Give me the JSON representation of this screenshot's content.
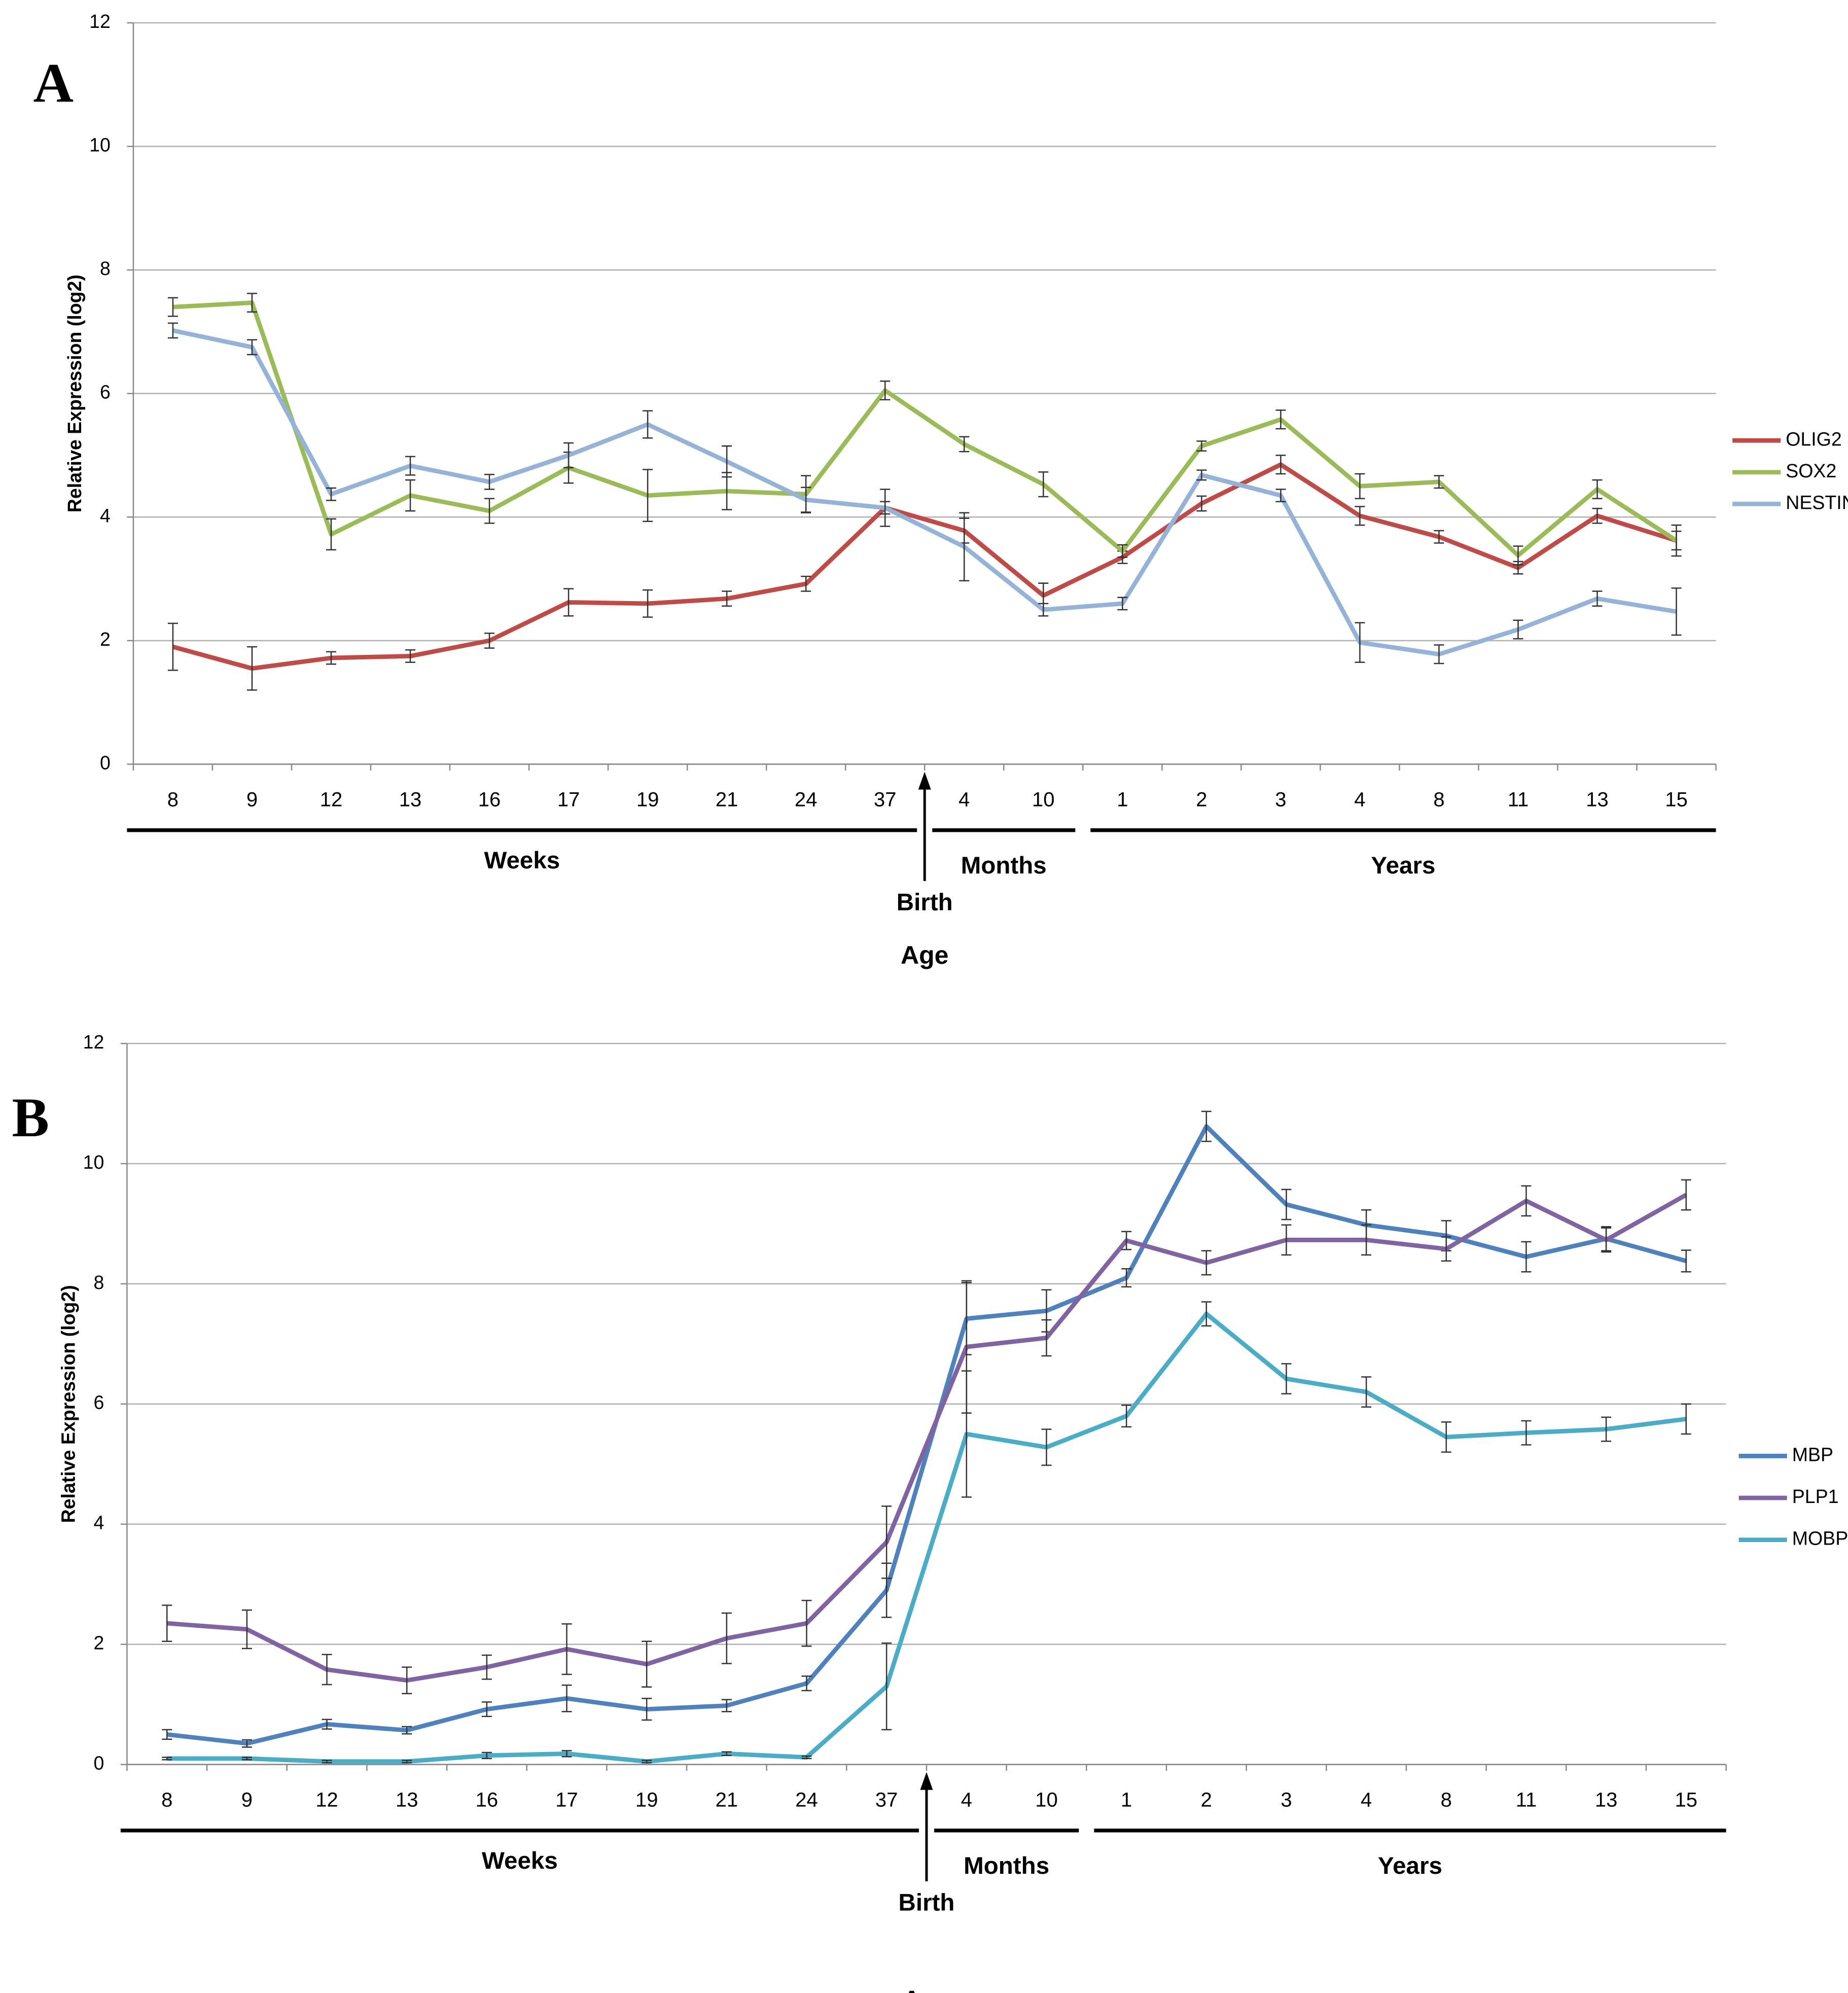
{
  "chart_data": [
    {
      "type": "line",
      "panel": "A",
      "ylabel": "Relative Expression (log2)",
      "xlabel": "Age",
      "annotation": "Birth",
      "categories": [
        "8",
        "9",
        "12",
        "13",
        "16",
        "17",
        "19",
        "21",
        "24",
        "37",
        "4",
        "10",
        "1",
        "2",
        "3",
        "4",
        "8",
        "11",
        "13",
        "15"
      ],
      "groups": [
        {
          "label": "Weeks",
          "count": 10
        },
        {
          "label": "Months",
          "count": 2
        },
        {
          "label": "Years",
          "count": 8
        }
      ],
      "ylim": [
        0,
        12
      ],
      "yticks": [
        0,
        2,
        4,
        6,
        8,
        10,
        12
      ],
      "grid": true,
      "legend": "right",
      "series": [
        {
          "name": "OLIG2",
          "color": "#be4b48",
          "values": [
            1.9,
            1.55,
            1.72,
            1.75,
            2.0,
            2.62,
            2.6,
            2.68,
            2.92,
            4.15,
            3.78,
            2.73,
            3.35,
            4.22,
            4.85,
            4.02,
            3.68,
            3.18,
            4.02,
            3.62
          ],
          "errors": [
            0.38,
            0.35,
            0.1,
            0.1,
            0.12,
            0.22,
            0.22,
            0.12,
            0.12,
            0.3,
            0.2,
            0.2,
            0.1,
            0.12,
            0.15,
            0.15,
            0.1,
            0.1,
            0.12,
            0.15
          ]
        },
        {
          "name": "SOX2",
          "color": "#9bbb59",
          "values": [
            7.4,
            7.47,
            3.72,
            4.35,
            4.1,
            4.8,
            4.35,
            4.42,
            4.37,
            6.05,
            5.18,
            4.53,
            3.45,
            5.15,
            5.58,
            4.5,
            4.57,
            3.38,
            4.45,
            3.62
          ],
          "errors": [
            0.15,
            0.15,
            0.25,
            0.25,
            0.2,
            0.25,
            0.42,
            0.3,
            0.3,
            0.15,
            0.12,
            0.2,
            0.1,
            0.08,
            0.15,
            0.2,
            0.1,
            0.15,
            0.15,
            0.25
          ]
        },
        {
          "name": "NESTIN",
          "color": "#95b3d7",
          "values": [
            7.02,
            6.75,
            4.37,
            4.83,
            4.57,
            5.0,
            5.5,
            4.9,
            4.28,
            4.15,
            3.52,
            2.5,
            2.6,
            4.68,
            4.35,
            1.97,
            1.78,
            2.18,
            2.68,
            2.47
          ],
          "errors": [
            0.12,
            0.12,
            0.1,
            0.15,
            0.12,
            0.2,
            0.22,
            0.25,
            0.2,
            0.1,
            0.55,
            0.1,
            0.1,
            0.08,
            0.1,
            0.32,
            0.15,
            0.15,
            0.12,
            0.38
          ]
        }
      ]
    },
    {
      "type": "line",
      "panel": "B",
      "ylabel": "Relative Expression (log2)",
      "xlabel": "Age",
      "annotation": "Birth",
      "categories": [
        "8",
        "9",
        "12",
        "13",
        "16",
        "17",
        "19",
        "21",
        "24",
        "37",
        "4",
        "10",
        "1",
        "2",
        "3",
        "4",
        "8",
        "11",
        "13",
        "15"
      ],
      "groups": [
        {
          "label": "Weeks",
          "count": 10
        },
        {
          "label": "Months",
          "count": 2
        },
        {
          "label": "Years",
          "count": 8
        }
      ],
      "ylim": [
        0,
        12
      ],
      "yticks": [
        0,
        2,
        4,
        6,
        8,
        10,
        12
      ],
      "grid": true,
      "legend": "right",
      "series": [
        {
          "name": "MBP",
          "color": "#4f81bd",
          "values": [
            0.5,
            0.35,
            0.67,
            0.57,
            0.92,
            1.1,
            0.92,
            0.98,
            1.35,
            2.9,
            7.42,
            7.55,
            8.1,
            10.62,
            9.32,
            8.98,
            8.8,
            8.45,
            8.75,
            8.38
          ],
          "errors": [
            0.08,
            0.06,
            0.08,
            0.06,
            0.12,
            0.22,
            0.18,
            0.1,
            0.12,
            0.45,
            0.6,
            0.35,
            0.15,
            0.25,
            0.25,
            0.25,
            0.25,
            0.25,
            0.2,
            0.18
          ]
        },
        {
          "name": "PLP1",
          "color": "#8064a2",
          "values": [
            2.35,
            2.25,
            1.58,
            1.4,
            1.62,
            1.92,
            1.67,
            2.1,
            2.35,
            3.7,
            6.95,
            7.1,
            8.72,
            8.35,
            8.73,
            8.73,
            8.58,
            9.38,
            8.73,
            9.48
          ],
          "errors": [
            0.3,
            0.32,
            0.25,
            0.22,
            0.2,
            0.42,
            0.38,
            0.42,
            0.38,
            0.6,
            1.1,
            0.3,
            0.15,
            0.2,
            0.25,
            0.25,
            0.2,
            0.25,
            0.2,
            0.25
          ]
        },
        {
          "name": "MOBP",
          "color": "#4bacc6",
          "values": [
            0.1,
            0.1,
            0.05,
            0.05,
            0.15,
            0.18,
            0.05,
            0.18,
            0.12,
            1.3,
            5.5,
            5.28,
            5.8,
            7.5,
            6.42,
            6.2,
            5.45,
            5.52,
            5.58,
            5.75
          ],
          "errors": [
            0.02,
            0.02,
            0.02,
            0.02,
            0.05,
            0.05,
            0.02,
            0.03,
            0.02,
            0.72,
            1.05,
            0.3,
            0.18,
            0.2,
            0.25,
            0.25,
            0.25,
            0.2,
            0.2,
            0.25
          ]
        }
      ]
    }
  ]
}
